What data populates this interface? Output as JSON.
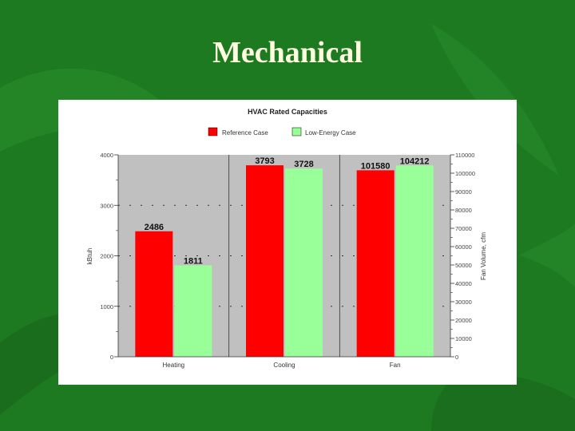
{
  "slide": {
    "title": "Mechanical"
  },
  "chart_data": {
    "type": "bar",
    "title": "HVAC Rated Capacities",
    "legend": {
      "placement": "top-center"
    },
    "series": [
      {
        "name": "Reference Case",
        "color": "#ff0000"
      },
      {
        "name": "Low-Energy Case",
        "color": "#99ff99"
      }
    ],
    "groups": [
      {
        "category": "Heating",
        "axis": "left",
        "values": [
          2486,
          1811
        ],
        "labels": [
          "2486",
          "1811"
        ]
      },
      {
        "category": "Cooling",
        "axis": "left",
        "values": [
          3793,
          3728
        ],
        "labels": [
          "3793",
          "3728"
        ]
      },
      {
        "category": "Fan",
        "axis": "right",
        "values": [
          101580,
          104212
        ],
        "labels": [
          "101580",
          "104212"
        ]
      }
    ],
    "y_left": {
      "label": "kBtuh",
      "ylim": [
        0,
        4000
      ],
      "ticks": [
        "0",
        "1000",
        "2000",
        "3000",
        "4000"
      ]
    },
    "y_right": {
      "label": "Fan Volume, cfm",
      "ylim": [
        0,
        110000
      ],
      "ticks": [
        "0",
        "10000",
        "20000",
        "30000",
        "40000",
        "50000",
        "60000",
        "70000",
        "80000",
        "90000",
        "100000",
        "110000"
      ]
    },
    "grid": true,
    "plot_background": "#c0c0c0"
  }
}
